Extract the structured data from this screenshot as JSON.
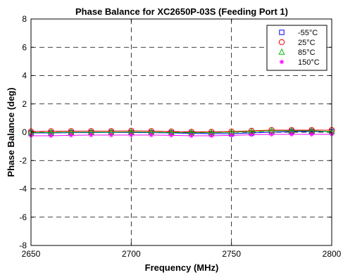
{
  "chart_data": {
    "type": "line",
    "title": "Phase Balance for XC2650P-03S (Feeding Port 1)",
    "xlabel": "Frequency (MHz)",
    "ylabel": "Phase Balance (deg)",
    "xlim": [
      2650,
      2800
    ],
    "ylim": [
      -8,
      8
    ],
    "xticks": [
      "2650",
      "2700",
      "2750",
      "2800"
    ],
    "yticks": [
      "-8",
      "-6",
      "-4",
      "-2",
      "0",
      "2",
      "4",
      "6",
      "8"
    ],
    "xtick_values": [
      2650,
      2700,
      2750,
      2800
    ],
    "ytick_values": [
      -8,
      -6,
      -4,
      -2,
      0,
      2,
      4,
      6,
      8
    ],
    "grid": true,
    "legend_position": "top-right",
    "x": [
      2650,
      2660,
      2670,
      2680,
      2690,
      2700,
      2710,
      2720,
      2730,
      2740,
      2750,
      2760,
      2770,
      2780,
      2790,
      2800
    ],
    "series": [
      {
        "name": "-55°C",
        "color": "#0000ff",
        "marker": "square",
        "values": [
          -0.05,
          -0.05,
          -0.03,
          -0.03,
          -0.02,
          -0.02,
          -0.03,
          -0.05,
          -0.08,
          -0.1,
          -0.1,
          -0.05,
          0.0,
          0.05,
          0.05,
          0.05
        ]
      },
      {
        "name": "25°C",
        "color": "#ff0000",
        "marker": "circle",
        "values": [
          0.05,
          0.07,
          0.08,
          0.08,
          0.08,
          0.1,
          0.08,
          0.05,
          0.03,
          0.03,
          0.05,
          0.1,
          0.15,
          0.15,
          0.15,
          0.15
        ]
      },
      {
        "name": "85°C",
        "color": "#00bb00",
        "marker": "triangle",
        "values": [
          -0.02,
          -0.02,
          0.0,
          0.0,
          0.0,
          0.02,
          0.0,
          -0.02,
          -0.03,
          -0.03,
          0.0,
          0.05,
          0.1,
          0.1,
          0.1,
          0.05
        ]
      },
      {
        "name": "150°C",
        "color": "#ff00ff",
        "marker": "star",
        "values": [
          -0.25,
          -0.25,
          -0.22,
          -0.2,
          -0.2,
          -0.2,
          -0.2,
          -0.22,
          -0.25,
          -0.25,
          -0.22,
          -0.18,
          -0.15,
          -0.15,
          -0.15,
          -0.15
        ]
      }
    ]
  }
}
